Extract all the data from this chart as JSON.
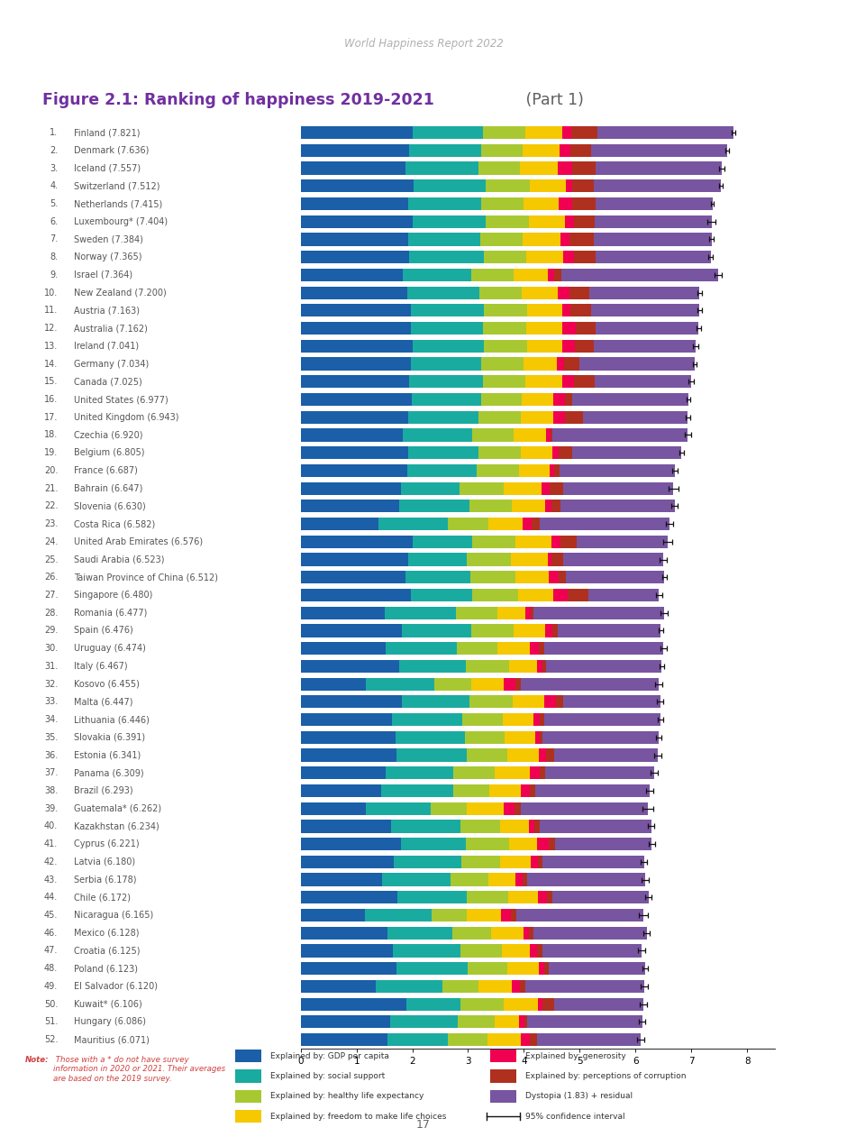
{
  "header": "World Happiness Report 2022",
  "title_bold": "Figure 2.1: Ranking of happiness 2019-2021",
  "title_normal": " (Part 1)",
  "separator_color": "#c9748a",
  "countries_num": [
    "1.",
    "2.",
    "3.",
    "4.",
    "5.",
    "6.",
    "7.",
    "8.",
    "9.",
    "10.",
    "11.",
    "12.",
    "13.",
    "14.",
    "15.",
    "16.",
    "17.",
    "18.",
    "19.",
    "20.",
    "21.",
    "22.",
    "23.",
    "24.",
    "25.",
    "26.",
    "27.",
    "28.",
    "29.",
    "30.",
    "31.",
    "32.",
    "33.",
    "34.",
    "35.",
    "36.",
    "37.",
    "38.",
    "39.",
    "40.",
    "41.",
    "42.",
    "43.",
    "44.",
    "45.",
    "46.",
    "47.",
    "48.",
    "49.",
    "50.",
    "51.",
    "52."
  ],
  "countries_name": [
    "Finland (7.821)",
    "Denmark (7.636)",
    "Iceland (7.557)",
    "Switzerland (7.512)",
    "Netherlands (7.415)",
    "Luxembourg* (7.404)",
    "Sweden (7.384)",
    "Norway (7.365)",
    "Israel (7.364)",
    "New Zealand (7.200)",
    "Austria (7.163)",
    "Australia (7.162)",
    "Ireland (7.041)",
    "Germany (7.034)",
    "Canada (7.025)",
    "United States (6.977)",
    "United Kingdom (6.943)",
    "Czechia (6.920)",
    "Belgium (6.805)",
    "France (6.687)",
    "Bahrain (6.647)",
    "Slovenia (6.630)",
    "Costa Rica (6.582)",
    "United Arab Emirates (6.576)",
    "Saudi Arabia (6.523)",
    "Taiwan Province of China (6.512)",
    "Singapore (6.480)",
    "Romania (6.477)",
    "Spain (6.476)",
    "Uruguay (6.474)",
    "Italy (6.467)",
    "Kosovo (6.455)",
    "Malta (6.447)",
    "Lithuania (6.446)",
    "Slovakia (6.391)",
    "Estonia (6.341)",
    "Panama (6.309)",
    "Brazil (6.293)",
    "Guatemala* (6.262)",
    "Kazakhstan (6.234)",
    "Cyprus (6.221)",
    "Latvia (6.180)",
    "Serbia (6.178)",
    "Chile (6.172)",
    "Nicaragua (6.165)",
    "Mexico (6.128)",
    "Croatia (6.125)",
    "Poland (6.123)",
    "El Salvador (6.120)",
    "Kuwait* (6.106)",
    "Hungary (6.086)",
    "Mauritius (6.071)"
  ],
  "gdp": [
    2.01,
    1.94,
    1.87,
    2.03,
    1.93,
    2.01,
    1.93,
    1.95,
    1.83,
    1.91,
    1.97,
    1.97,
    2.0,
    1.97,
    1.95,
    1.99,
    1.92,
    1.83,
    1.93,
    1.91,
    1.8,
    1.77,
    1.39,
    2.0,
    1.92,
    1.87,
    1.98,
    1.5,
    1.81,
    1.53,
    1.76,
    1.17,
    1.81,
    1.64,
    1.7,
    1.72,
    1.53,
    1.45,
    1.17,
    1.62,
    1.8,
    1.66,
    1.46,
    1.73,
    1.15,
    1.55,
    1.65,
    1.72,
    1.34,
    1.9,
    1.61,
    1.56
  ],
  "social": [
    1.26,
    1.3,
    1.31,
    1.28,
    1.3,
    1.3,
    1.29,
    1.33,
    1.22,
    1.29,
    1.31,
    1.3,
    1.28,
    1.27,
    1.32,
    1.24,
    1.27,
    1.24,
    1.26,
    1.25,
    1.05,
    1.26,
    1.24,
    1.08,
    1.06,
    1.17,
    1.1,
    1.29,
    1.25,
    1.27,
    1.2,
    1.22,
    1.22,
    1.26,
    1.24,
    1.26,
    1.21,
    1.28,
    1.16,
    1.24,
    1.16,
    1.22,
    1.22,
    1.24,
    1.2,
    1.17,
    1.22,
    1.27,
    1.2,
    0.97,
    1.2,
    1.07
  ],
  "health": [
    0.76,
    0.73,
    0.75,
    0.8,
    0.76,
    0.78,
    0.76,
    0.76,
    0.77,
    0.76,
    0.77,
    0.77,
    0.77,
    0.75,
    0.76,
    0.73,
    0.75,
    0.74,
    0.75,
    0.76,
    0.78,
    0.75,
    0.73,
    0.77,
    0.79,
    0.81,
    0.82,
    0.73,
    0.76,
    0.72,
    0.78,
    0.67,
    0.77,
    0.72,
    0.72,
    0.72,
    0.73,
    0.65,
    0.64,
    0.71,
    0.77,
    0.7,
    0.68,
    0.75,
    0.62,
    0.69,
    0.73,
    0.72,
    0.65,
    0.77,
    0.67,
    0.72
  ],
  "freedom": [
    0.66,
    0.67,
    0.67,
    0.64,
    0.64,
    0.64,
    0.67,
    0.67,
    0.61,
    0.65,
    0.63,
    0.65,
    0.64,
    0.6,
    0.65,
    0.57,
    0.59,
    0.58,
    0.57,
    0.54,
    0.68,
    0.6,
    0.61,
    0.64,
    0.66,
    0.59,
    0.63,
    0.51,
    0.56,
    0.59,
    0.49,
    0.57,
    0.57,
    0.55,
    0.54,
    0.57,
    0.63,
    0.56,
    0.66,
    0.52,
    0.51,
    0.55,
    0.49,
    0.53,
    0.62,
    0.59,
    0.5,
    0.55,
    0.6,
    0.61,
    0.44,
    0.59
  ],
  "generosity": [
    0.16,
    0.19,
    0.26,
    0.11,
    0.24,
    0.17,
    0.17,
    0.19,
    0.11,
    0.2,
    0.15,
    0.24,
    0.22,
    0.13,
    0.22,
    0.2,
    0.2,
    0.08,
    0.11,
    0.09,
    0.15,
    0.11,
    0.17,
    0.17,
    0.06,
    0.19,
    0.25,
    0.09,
    0.13,
    0.15,
    0.1,
    0.22,
    0.2,
    0.11,
    0.09,
    0.13,
    0.18,
    0.17,
    0.2,
    0.09,
    0.2,
    0.12,
    0.13,
    0.16,
    0.18,
    0.09,
    0.13,
    0.11,
    0.14,
    0.08,
    0.09,
    0.16
  ],
  "corruption": [
    0.46,
    0.38,
    0.42,
    0.4,
    0.41,
    0.37,
    0.44,
    0.38,
    0.13,
    0.37,
    0.38,
    0.36,
    0.34,
    0.27,
    0.37,
    0.14,
    0.33,
    0.04,
    0.24,
    0.09,
    0.25,
    0.17,
    0.14,
    0.28,
    0.21,
    0.13,
    0.37,
    0.05,
    0.1,
    0.11,
    0.07,
    0.1,
    0.14,
    0.08,
    0.05,
    0.14,
    0.1,
    0.1,
    0.12,
    0.1,
    0.12,
    0.08,
    0.07,
    0.1,
    0.1,
    0.08,
    0.1,
    0.07,
    0.1,
    0.21,
    0.04,
    0.13
  ],
  "dystopia": [
    2.44,
    2.43,
    2.26,
    2.27,
    2.1,
    2.09,
    2.1,
    2.07,
    2.81,
    1.97,
    1.94,
    1.84,
    1.83,
    2.07,
    1.73,
    2.08,
    1.88,
    2.43,
    1.96,
    2.07,
    1.97,
    2.04,
    2.33,
    1.64,
    1.8,
    1.76,
    1.27,
    2.34,
    1.84,
    2.13,
    2.07,
    2.47,
    1.73,
    2.09,
    2.07,
    1.86,
    1.95,
    2.04,
    2.27,
    2.0,
    1.73,
    1.82,
    2.13,
    1.72,
    2.27,
    2.03,
    1.78,
    1.73,
    2.13,
    1.6,
    2.07,
    1.86
  ],
  "ci": [
    0.031,
    0.035,
    0.048,
    0.038,
    0.028,
    0.072,
    0.036,
    0.041,
    0.071,
    0.046,
    0.048,
    0.041,
    0.05,
    0.029,
    0.044,
    0.038,
    0.037,
    0.05,
    0.04,
    0.046,
    0.091,
    0.053,
    0.058,
    0.077,
    0.065,
    0.042,
    0.055,
    0.063,
    0.042,
    0.056,
    0.044,
    0.064,
    0.062,
    0.048,
    0.049,
    0.062,
    0.066,
    0.062,
    0.096,
    0.056,
    0.055,
    0.062,
    0.065,
    0.062,
    0.074,
    0.055,
    0.058,
    0.048,
    0.069,
    0.071,
    0.06,
    0.06
  ],
  "colors": {
    "gdp": "#1a5fa8",
    "social": "#1aaba0",
    "health": "#a8c832",
    "freedom": "#f5c800",
    "generosity": "#f00050",
    "corruption": "#b03020",
    "dystopia": "#7855a0"
  },
  "legend_labels": [
    "Explained by: GDP per capita",
    "Explained by: social support",
    "Explained by: healthy life expectancy",
    "Explained by: freedom to make life choices",
    "Explained by: generosity",
    "Explained by: perceptions of corruption",
    "Dystopia (1.83) + residual",
    "95% confidence interval"
  ],
  "note_bold": "Note:",
  "note_rest": " Those with a * do not have survey\ninformation in 2020 or 2021. Their averages\nare based on the 2019 survey.",
  "xlim": [
    0,
    8.5
  ],
  "xticks": [
    0,
    1,
    2,
    3,
    4,
    5,
    6,
    7,
    8
  ],
  "bar_height": 0.72,
  "page_number": "17",
  "bg_color": "#f5f5f0"
}
